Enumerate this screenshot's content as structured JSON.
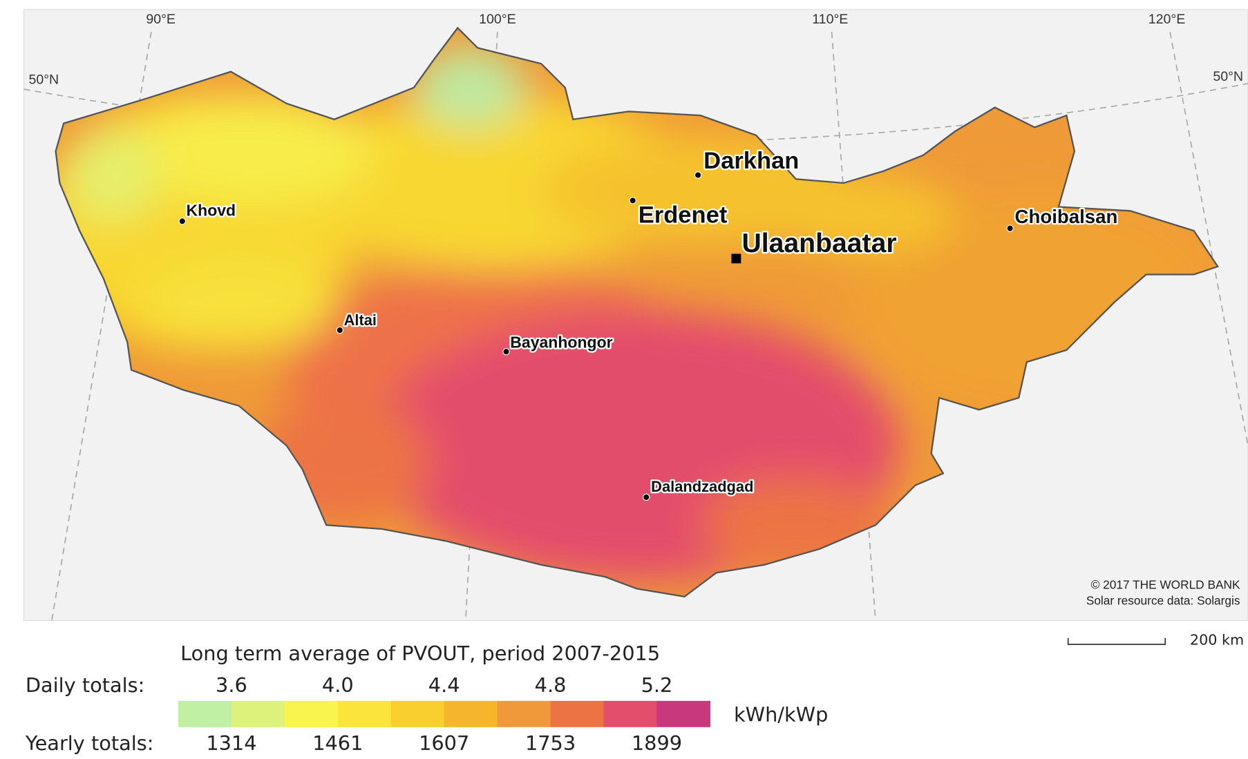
{
  "map": {
    "graticule": {
      "lon": [
        "90°E",
        "100°E",
        "110°E",
        "120°E"
      ],
      "lat": [
        "50°N",
        "50°N"
      ]
    },
    "cities": [
      {
        "name": "Darkhan",
        "marker": "dot"
      },
      {
        "name": "Erdenet",
        "marker": "dot"
      },
      {
        "name": "Ulaanbaatar",
        "marker": "square"
      },
      {
        "name": "Khovd",
        "marker": "dot"
      },
      {
        "name": "Choibalsan",
        "marker": "dot"
      },
      {
        "name": "Altai",
        "marker": "dot"
      },
      {
        "name": "Bayanhongor",
        "marker": "dot"
      },
      {
        "name": "Dalandzadgad",
        "marker": "dot"
      }
    ],
    "credit": [
      "© 2017 THE WORLD BANK",
      "Solar resource data: Solargis"
    ],
    "scale": "200 km"
  },
  "legend": {
    "title": "Long term average of PVOUT, period 2007-2015",
    "daily_label": "Daily totals:",
    "daily": [
      "3.6",
      "4.0",
      "4.4",
      "4.8",
      "5.2"
    ],
    "yearly_label": "Yearly totals:",
    "yearly": [
      "1314",
      "1461",
      "1607",
      "1753",
      "1899"
    ],
    "unit": "kWh/kWp",
    "colors": [
      "#bff0a4",
      "#dcf27a",
      "#f9f54e",
      "#fbe53c",
      "#f8cf2e",
      "#f5b52c",
      "#f0993a",
      "#ec7344",
      "#e34e6c",
      "#c8387c"
    ]
  }
}
